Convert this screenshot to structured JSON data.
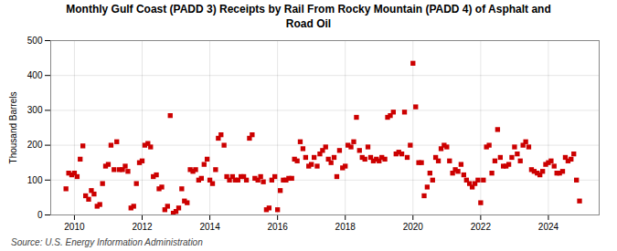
{
  "chart_data": {
    "type": "scatter",
    "title": "Monthly Gulf Coast (PADD 3) Receipts by Rail From Rocky Mountain (PADD 4) of Asphalt and\nRoad Oil",
    "ylabel": "Thousand Barrels",
    "source": "Source: U.S. Energy Information Administration",
    "color": "#cc0000",
    "marker": "square",
    "grid": true,
    "xlim": [
      2009.3,
      2025.5
    ],
    "xticks": [
      2010,
      2012,
      2014,
      2016,
      2018,
      2020,
      2022,
      2024
    ],
    "ylim": [
      0,
      500
    ],
    "yticks": [
      0,
      100,
      200,
      300,
      400,
      500
    ],
    "x": [
      2009.75,
      2009.83,
      2009.92,
      2010.0,
      2010.08,
      2010.17,
      2010.25,
      2010.33,
      2010.42,
      2010.5,
      2010.58,
      2010.67,
      2010.75,
      2010.83,
      2010.92,
      2011.0,
      2011.08,
      2011.17,
      2011.25,
      2011.33,
      2011.42,
      2011.5,
      2011.58,
      2011.67,
      2011.75,
      2011.83,
      2011.92,
      2012.0,
      2012.08,
      2012.17,
      2012.25,
      2012.33,
      2012.42,
      2012.5,
      2012.58,
      2012.67,
      2012.75,
      2012.83,
      2012.92,
      2013.0,
      2013.08,
      2013.17,
      2013.25,
      2013.33,
      2013.42,
      2013.5,
      2013.58,
      2013.67,
      2013.75,
      2013.83,
      2013.92,
      2014.0,
      2014.08,
      2014.17,
      2014.25,
      2014.33,
      2014.42,
      2014.5,
      2014.58,
      2014.67,
      2014.75,
      2014.83,
      2014.92,
      2015.0,
      2015.08,
      2015.17,
      2015.25,
      2015.33,
      2015.42,
      2015.5,
      2015.58,
      2015.67,
      2015.75,
      2015.83,
      2015.92,
      2016.0,
      2016.08,
      2016.17,
      2016.25,
      2016.33,
      2016.42,
      2016.5,
      2016.58,
      2016.67,
      2016.75,
      2016.83,
      2016.92,
      2017.0,
      2017.08,
      2017.17,
      2017.25,
      2017.33,
      2017.42,
      2017.5,
      2017.58,
      2017.67,
      2017.75,
      2017.83,
      2017.92,
      2018.0,
      2018.08,
      2018.17,
      2018.25,
      2018.33,
      2018.42,
      2018.5,
      2018.58,
      2018.67,
      2018.75,
      2018.83,
      2018.92,
      2019.0,
      2019.08,
      2019.17,
      2019.25,
      2019.33,
      2019.42,
      2019.5,
      2019.58,
      2019.67,
      2019.75,
      2019.83,
      2019.92,
      2020.0,
      2020.08,
      2020.17,
      2020.25,
      2020.33,
      2020.42,
      2020.5,
      2020.58,
      2020.67,
      2020.75,
      2020.83,
      2020.92,
      2021.0,
      2021.08,
      2021.17,
      2021.25,
      2021.33,
      2021.42,
      2021.5,
      2021.58,
      2021.67,
      2021.75,
      2021.83,
      2021.92,
      2022.0,
      2022.08,
      2022.17,
      2022.25,
      2022.33,
      2022.42,
      2022.5,
      2022.58,
      2022.67,
      2022.75,
      2022.83,
      2022.92,
      2023.0,
      2023.08,
      2023.17,
      2023.25,
      2023.33,
      2023.42,
      2023.5,
      2023.58,
      2023.67,
      2023.75,
      2023.83,
      2023.92,
      2024.0,
      2024.08,
      2024.17,
      2024.25,
      2024.33,
      2024.42,
      2024.5,
      2024.58,
      2024.67,
      2024.75,
      2024.83,
      2024.92
    ],
    "values": [
      75,
      120,
      115,
      120,
      110,
      160,
      198,
      55,
      45,
      70,
      60,
      25,
      30,
      90,
      140,
      145,
      200,
      130,
      210,
      130,
      130,
      140,
      125,
      20,
      25,
      90,
      150,
      155,
      200,
      205,
      195,
      110,
      115,
      75,
      80,
      15,
      25,
      285,
      5,
      10,
      20,
      75,
      40,
      35,
      130,
      125,
      130,
      100,
      105,
      145,
      160,
      100,
      90,
      130,
      220,
      230,
      200,
      110,
      100,
      110,
      100,
      100,
      110,
      110,
      100,
      220,
      230,
      105,
      100,
      110,
      95,
      15,
      20,
      100,
      110,
      15,
      70,
      100,
      100,
      105,
      105,
      160,
      155,
      210,
      190,
      165,
      140,
      145,
      165,
      140,
      175,
      185,
      195,
      160,
      150,
      165,
      110,
      185,
      135,
      140,
      200,
      195,
      210,
      280,
      185,
      165,
      160,
      195,
      165,
      155,
      160,
      155,
      165,
      160,
      280,
      285,
      295,
      175,
      180,
      175,
      295,
      165,
      200,
      435,
      310,
      150,
      150,
      55,
      80,
      120,
      100,
      165,
      155,
      190,
      200,
      195,
      155,
      120,
      130,
      125,
      145,
      115,
      100,
      90,
      80,
      90,
      100,
      35,
      100,
      195,
      200,
      120,
      155,
      245,
      165,
      140,
      140,
      145,
      165,
      195,
      175,
      155,
      200,
      210,
      195,
      130,
      125,
      120,
      115,
      125,
      145,
      150,
      155,
      140,
      120,
      120,
      125,
      165,
      155,
      160,
      175,
      100,
      40
    ]
  }
}
